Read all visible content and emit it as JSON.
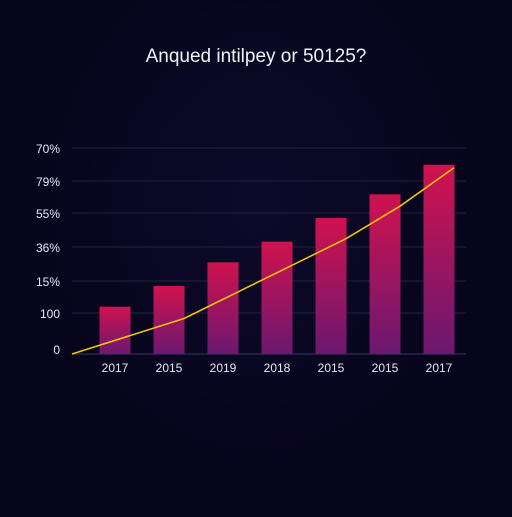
{
  "chart_data": {
    "type": "bar",
    "title": "Anqued intilpey or 50125?",
    "y_tick_labels": [
      "70%",
      "79%",
      "55%",
      "36%",
      "15%",
      "100",
      "0"
    ],
    "categories": [
      "2017",
      "2015",
      "2019",
      "2018",
      "2015",
      "2015",
      "2017"
    ],
    "values": [
      1.6,
      2.3,
      3.1,
      3.8,
      4.6,
      5.4,
      6.4
    ],
    "line_values": [
      0,
      1.2,
      2.1,
      3.0,
      3.9,
      5.0,
      6.3
    ],
    "ylim": [
      0,
      6.9
    ],
    "grid": true,
    "colors": {
      "bar_top": "#d0124e",
      "bar_bottom": "#6a1870",
      "line": "#f2c40a",
      "background": "#06041a"
    }
  }
}
